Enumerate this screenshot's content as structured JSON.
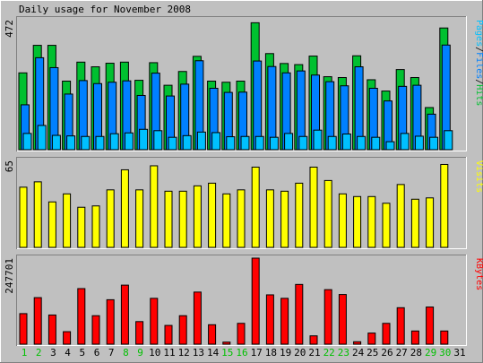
{
  "chart_data": [
    {
      "type": "bar",
      "title": "Daily usage for November 2008",
      "ylabel_parts": [
        "Pages",
        "/",
        "Files",
        "/",
        "Hits"
      ],
      "ymax_label": "472",
      "ylim": [
        0,
        472
      ],
      "categories": [
        "1",
        "2",
        "3",
        "4",
        "5",
        "6",
        "7",
        "8",
        "9",
        "10",
        "11",
        "12",
        "13",
        "14",
        "15",
        "16",
        "17",
        "18",
        "19",
        "20",
        "21",
        "22",
        "23",
        "24",
        "25",
        "26",
        "27",
        "28",
        "29",
        "30",
        "31"
      ],
      "weekend_days": [
        "1",
        "2",
        "8",
        "9",
        "15",
        "16",
        "22",
        "23",
        "29",
        "30"
      ],
      "series": [
        {
          "name": "Hits",
          "values": [
            279,
            379,
            379,
            249,
            318,
            301,
            314,
            318,
            252,
            316,
            234,
            284,
            339,
            249,
            245,
            249,
            461,
            349,
            313,
            309,
            340,
            265,
            262,
            341,
            254,
            213,
            291,
            262,
            153,
            442,
            0
          ]
        },
        {
          "name": "Files",
          "values": [
            163,
            334,
            298,
            202,
            251,
            240,
            245,
            250,
            197,
            278,
            195,
            238,
            323,
            223,
            208,
            209,
            322,
            302,
            279,
            286,
            271,
            247,
            232,
            301,
            223,
            177,
            230,
            234,
            129,
            380,
            0
          ]
        },
        {
          "name": "Pages",
          "values": [
            59,
            88,
            52,
            50,
            48,
            48,
            58,
            61,
            74,
            69,
            45,
            51,
            64,
            62,
            47,
            48,
            48,
            45,
            59,
            48,
            71,
            48,
            57,
            48,
            45,
            29,
            59,
            49,
            45,
            69,
            0
          ]
        }
      ]
    },
    {
      "type": "bar",
      "ylabel": "Visits",
      "ymax_label": "65",
      "ylim": [
        0,
        65
      ],
      "series": [
        {
          "name": "Visits",
          "values": [
            45,
            49,
            34,
            40,
            30,
            31,
            43,
            58,
            43,
            61,
            42,
            42,
            46,
            48,
            40,
            43,
            60,
            43,
            42,
            48,
            60,
            50,
            40,
            38,
            38,
            33,
            47,
            36,
            37,
            62,
            0
          ]
        }
      ]
    },
    {
      "type": "bar",
      "ylabel": "KBytes",
      "ymax_label": "247701",
      "ylim": [
        0,
        247701
      ],
      "series": [
        {
          "name": "KBytes",
          "values": [
            88000,
            134000,
            84000,
            36000,
            160000,
            82000,
            128000,
            170000,
            65000,
            132000,
            54000,
            82000,
            150000,
            56000,
            6000,
            60000,
            247701,
            142000,
            132000,
            172000,
            24000,
            157000,
            143000,
            7000,
            32000,
            60000,
            105000,
            38000,
            107000,
            38000,
            0
          ]
        }
      ]
    }
  ],
  "colors": {
    "hits": "#00c030",
    "files": "#0080ff",
    "pages": "#00c0ff",
    "visits": "#ffff00",
    "kbytes": "#ff0000",
    "weekday_label": "#000000",
    "weekend_label": "#00c000"
  }
}
